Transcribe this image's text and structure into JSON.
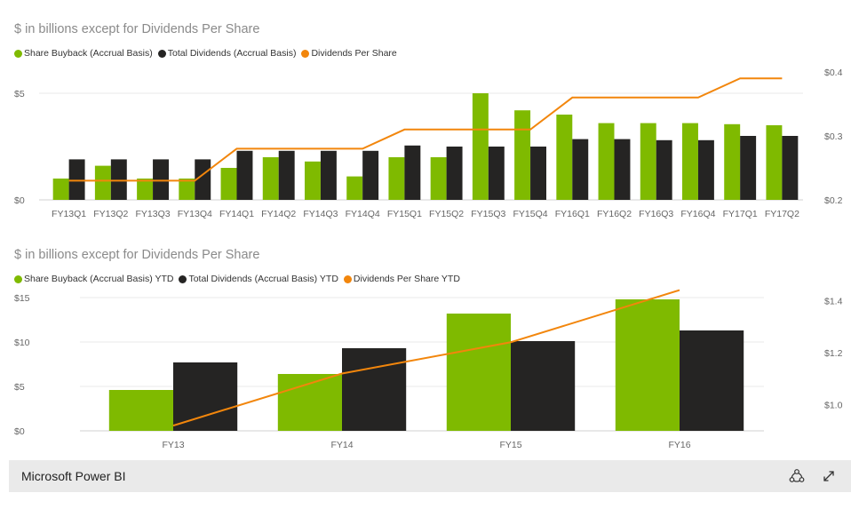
{
  "colors": {
    "green": "#7fba00",
    "black": "#252423",
    "orange": "#f2860c",
    "axis": "#666666",
    "grid": "#e8e8e8"
  },
  "chart_data": [
    {
      "type": "bar",
      "title": "$ in billions except for Dividends Per Share",
      "legend": [
        "Share Buyback (Accrual Basis)",
        "Total Dividends (Accrual Basis)",
        "Dividends Per Share"
      ],
      "categories": [
        "FY13Q1",
        "FY13Q2",
        "FY13Q3",
        "FY13Q4",
        "FY14Q1",
        "FY14Q2",
        "FY14Q3",
        "FY14Q4",
        "FY15Q1",
        "FY15Q2",
        "FY15Q3",
        "FY15Q4",
        "FY16Q1",
        "FY16Q2",
        "FY16Q3",
        "FY16Q4",
        "FY17Q1",
        "FY17Q2"
      ],
      "series": [
        {
          "name": "Share Buyback (Accrual Basis)",
          "kind": "bar",
          "axis": "left",
          "color": "green",
          "values": [
            1.0,
            1.6,
            1.0,
            1.0,
            1.5,
            2.0,
            1.8,
            1.1,
            2.0,
            2.0,
            5.0,
            4.2,
            4.0,
            3.6,
            3.6,
            3.6,
            3.55,
            3.5
          ]
        },
        {
          "name": "Total Dividends (Accrual Basis)",
          "kind": "bar",
          "axis": "left",
          "color": "black",
          "values": [
            1.9,
            1.9,
            1.9,
            1.9,
            2.3,
            2.3,
            2.3,
            2.3,
            2.55,
            2.5,
            2.5,
            2.5,
            2.85,
            2.85,
            2.8,
            2.8,
            3.0,
            3.0
          ]
        },
        {
          "name": "Dividends Per Share",
          "kind": "line",
          "axis": "right",
          "color": "orange",
          "values": [
            0.23,
            0.23,
            0.23,
            0.23,
            0.28,
            0.28,
            0.28,
            0.28,
            0.31,
            0.31,
            0.31,
            0.31,
            0.36,
            0.36,
            0.36,
            0.36,
            0.39,
            0.39
          ]
        }
      ],
      "y_left": {
        "ticks": [
          0,
          5
        ],
        "tick_labels": [
          "$0",
          "$5"
        ],
        "range": [
          0,
          5.0
        ]
      },
      "y_right": {
        "ticks": [
          0.2,
          0.3,
          0.4
        ],
        "tick_labels": [
          "$0.2",
          "$0.3",
          "$0.4"
        ],
        "range": [
          0.2,
          0.4
        ]
      }
    },
    {
      "type": "bar",
      "title": "$ in billions except for Dividends Per Share",
      "legend": [
        "Share Buyback (Accrual Basis) YTD",
        "Total Dividends (Accrual Basis) YTD",
        "Dividends Per Share YTD"
      ],
      "categories": [
        "FY13",
        "FY14",
        "FY15",
        "FY16"
      ],
      "series": [
        {
          "name": "Share Buyback (Accrual Basis) YTD",
          "kind": "bar",
          "axis": "left",
          "color": "green",
          "values": [
            4.6,
            6.4,
            13.2,
            14.8
          ]
        },
        {
          "name": "Total Dividends (Accrual Basis) YTD",
          "kind": "bar",
          "axis": "left",
          "color": "black",
          "values": [
            7.7,
            9.3,
            10.1,
            11.3
          ]
        },
        {
          "name": "Dividends Per Share YTD",
          "kind": "line",
          "axis": "right",
          "color": "orange",
          "values": [
            0.92,
            1.12,
            1.24,
            1.44
          ]
        }
      ],
      "y_left": {
        "ticks": [
          0,
          5,
          10,
          15
        ],
        "tick_labels": [
          "$0",
          "$5",
          "$10",
          "$15"
        ],
        "range": [
          0,
          15
        ]
      },
      "y_right": {
        "ticks": [
          1.0,
          1.2,
          1.4
        ],
        "tick_labels": [
          "$1.0",
          "$1.2",
          "$1.4"
        ],
        "range": [
          0.9,
          1.5
        ]
      }
    }
  ],
  "footer": {
    "title": "Microsoft Power BI",
    "icons": [
      "share-icon",
      "expand-icon"
    ]
  }
}
